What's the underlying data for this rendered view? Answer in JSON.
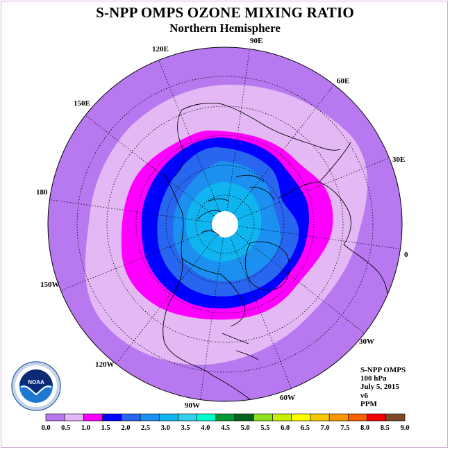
{
  "title": "S-NPP OMPS OZONE MIXING RATIO",
  "subtitle": "Northern Hemisphere",
  "longitude_labels": {
    "lon_90e": "90E",
    "lon_60e": "60E",
    "lon_30e": "30E",
    "lon_0": "0",
    "lon_30w": "30W",
    "lon_60w": "60W",
    "lon_90w": "90W",
    "lon_120w": "120W",
    "lon_150w": "150W",
    "lon_180": "180",
    "lon_150e": "150E",
    "lon_120e": "120E"
  },
  "info": {
    "instrument": "S-NPP OMPS",
    "level": "100 hPa",
    "date": "July 5, 2015",
    "version": "v6",
    "units": "PPM"
  },
  "logo": {
    "text": "NOAA",
    "ring_text": "NATIONAL OCEANIC AND ATMOSPHERIC ADMINISTRATION · U.S. DEPARTMENT OF COMMERCE"
  },
  "colorbar": {
    "ticks": [
      "0.0",
      "0.5",
      "1.0",
      "1.5",
      "2.0",
      "2.5",
      "3.0",
      "3.5",
      "4.0",
      "4.5",
      "5.0",
      "5.5",
      "6.0",
      "6.5",
      "7.0",
      "7.5",
      "8.0",
      "8.5",
      "9.0"
    ],
    "colors": [
      "#b878f0",
      "#e4b8f4",
      "#ff00ff",
      "#0000ff",
      "#2866f0",
      "#1c90f0",
      "#10b4f0",
      "#30d2ea",
      "#00ffcc",
      "#009a30",
      "#006420",
      "#90e020",
      "#c8f000",
      "#ffff00",
      "#f8c800",
      "#f89800",
      "#f86000",
      "#f00000",
      "#804828"
    ]
  },
  "map_colors": {
    "outer": "#b878f0",
    "band_05": "#e4b8f4",
    "band_10": "#ff00ff",
    "band_15": "#0000ff",
    "band_20": "#2866f0",
    "band_25": "#1c90f0",
    "band_30": "#10b4f0",
    "pole": "#ffffff"
  }
}
